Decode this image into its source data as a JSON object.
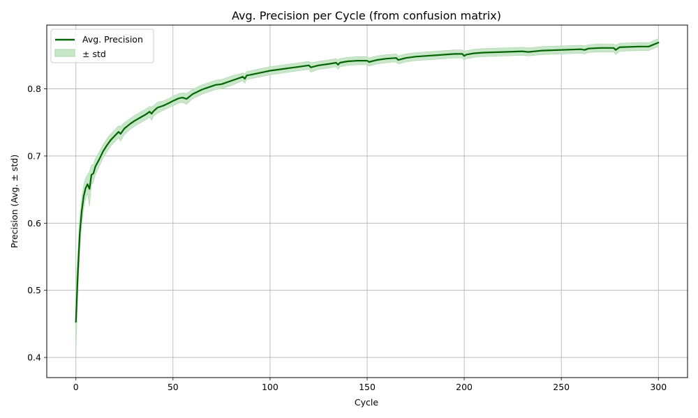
{
  "chart_data": {
    "type": "line",
    "title": "Avg. Precision per Cycle (from confusion matrix)",
    "xlabel": "Cycle",
    "ylabel": "Precision (Avg. ± std)",
    "xlim": [
      -15,
      315
    ],
    "ylim": [
      0.37,
      0.895
    ],
    "x_ticks": [
      0,
      50,
      100,
      150,
      200,
      250,
      300
    ],
    "y_ticks": [
      0.4,
      0.5,
      0.6,
      0.7,
      0.8
    ],
    "x_tick_labels": [
      "0",
      "50",
      "100",
      "150",
      "200",
      "250",
      "300"
    ],
    "y_tick_labels": [
      "0.4",
      "0.5",
      "0.6",
      "0.7",
      "0.8"
    ],
    "grid": true,
    "legend_position": "top-left",
    "series": [
      {
        "name": "Avg. Precision",
        "color": "#006400",
        "band_name": "± std",
        "band_color": "#c8e6c8",
        "x": [
          0,
          1,
          2,
          3,
          4,
          5,
          6,
          7,
          8,
          9,
          10,
          12,
          14,
          16,
          18,
          20,
          22,
          23,
          25,
          28,
          30,
          33,
          36,
          38,
          39,
          40,
          42,
          45,
          48,
          50,
          53,
          55,
          57,
          60,
          65,
          70,
          72,
          75,
          80,
          85,
          86,
          87,
          88,
          90,
          95,
          100,
          105,
          110,
          115,
          120,
          121,
          125,
          130,
          134,
          135,
          136,
          140,
          145,
          150,
          151,
          155,
          160,
          165,
          166,
          170,
          175,
          180,
          185,
          190,
          195,
          199,
          200,
          201,
          205,
          210,
          220,
          230,
          233,
          240,
          250,
          260,
          262,
          264,
          270,
          277,
          278,
          280,
          290,
          295,
          300
        ],
        "values": [
          0.453,
          0.525,
          0.585,
          0.618,
          0.64,
          0.652,
          0.658,
          0.651,
          0.672,
          0.674,
          0.684,
          0.695,
          0.707,
          0.716,
          0.724,
          0.73,
          0.736,
          0.733,
          0.741,
          0.748,
          0.752,
          0.757,
          0.762,
          0.766,
          0.763,
          0.767,
          0.772,
          0.775,
          0.779,
          0.782,
          0.786,
          0.787,
          0.785,
          0.792,
          0.799,
          0.804,
          0.806,
          0.807,
          0.812,
          0.817,
          0.818,
          0.815,
          0.82,
          0.821,
          0.824,
          0.827,
          0.829,
          0.831,
          0.833,
          0.835,
          0.832,
          0.835,
          0.837,
          0.839,
          0.836,
          0.839,
          0.841,
          0.842,
          0.842,
          0.84,
          0.843,
          0.845,
          0.846,
          0.843,
          0.846,
          0.848,
          0.849,
          0.85,
          0.851,
          0.852,
          0.852,
          0.849,
          0.851,
          0.853,
          0.854,
          0.855,
          0.856,
          0.855,
          0.857,
          0.858,
          0.859,
          0.858,
          0.86,
          0.861,
          0.861,
          0.858,
          0.862,
          0.863,
          0.863,
          0.869
        ],
        "std": [
          0.045,
          0.03,
          0.024,
          0.02,
          0.017,
          0.015,
          0.014,
          0.026,
          0.015,
          0.013,
          0.012,
          0.011,
          0.01,
          0.01,
          0.009,
          0.009,
          0.009,
          0.011,
          0.009,
          0.008,
          0.008,
          0.008,
          0.008,
          0.008,
          0.01,
          0.008,
          0.008,
          0.007,
          0.007,
          0.007,
          0.007,
          0.007,
          0.008,
          0.007,
          0.007,
          0.007,
          0.007,
          0.007,
          0.007,
          0.006,
          0.006,
          0.007,
          0.006,
          0.006,
          0.006,
          0.006,
          0.006,
          0.006,
          0.006,
          0.006,
          0.007,
          0.006,
          0.006,
          0.006,
          0.007,
          0.006,
          0.006,
          0.006,
          0.006,
          0.006,
          0.006,
          0.006,
          0.006,
          0.006,
          0.006,
          0.006,
          0.006,
          0.006,
          0.006,
          0.006,
          0.006,
          0.006,
          0.006,
          0.006,
          0.006,
          0.006,
          0.006,
          0.006,
          0.006,
          0.006,
          0.006,
          0.006,
          0.006,
          0.006,
          0.006,
          0.007,
          0.006,
          0.006,
          0.006,
          0.006
        ]
      }
    ]
  }
}
